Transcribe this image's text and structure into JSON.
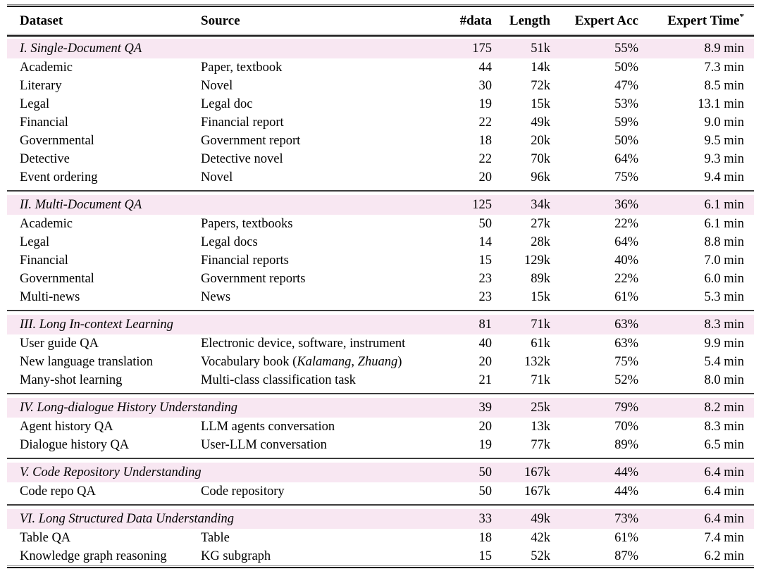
{
  "table": {
    "colors": {
      "section_row_bg": "#f8e7f2",
      "rule_color": "#141414"
    },
    "columns": [
      {
        "label": "Dataset",
        "align": "left"
      },
      {
        "label": "Source",
        "align": "left"
      },
      {
        "label": "#data",
        "align": "right"
      },
      {
        "label": "Length",
        "align": "right"
      },
      {
        "label": "Expert Acc",
        "align": "right"
      },
      {
        "label": "Expert Time",
        "superscript": "*",
        "align": "right"
      }
    ],
    "sections": [
      {
        "label": "I. Single-Document QA",
        "stats": {
          "data": "175",
          "length": "51k",
          "acc": "55%",
          "time": "8.9 min"
        },
        "rows": [
          {
            "dataset": "Academic",
            "source": "Paper, textbook",
            "data": "44",
            "length": "14k",
            "acc": "50%",
            "time": "7.3 min"
          },
          {
            "dataset": "Literary",
            "source": "Novel",
            "data": "30",
            "length": "72k",
            "acc": "47%",
            "time": "8.5 min"
          },
          {
            "dataset": "Legal",
            "source": "Legal doc",
            "data": "19",
            "length": "15k",
            "acc": "53%",
            "time": "13.1 min"
          },
          {
            "dataset": "Financial",
            "source": "Financial report",
            "data": "22",
            "length": "49k",
            "acc": "59%",
            "time": "9.0 min"
          },
          {
            "dataset": "Governmental",
            "source": "Government report",
            "data": "18",
            "length": "20k",
            "acc": "50%",
            "time": "9.5 min"
          },
          {
            "dataset": "Detective",
            "source": "Detective novel",
            "data": "22",
            "length": "70k",
            "acc": "64%",
            "time": "9.3 min"
          },
          {
            "dataset": "Event ordering",
            "source": "Novel",
            "data": "20",
            "length": "96k",
            "acc": "75%",
            "time": "9.4 min"
          }
        ]
      },
      {
        "label": "II. Multi-Document QA",
        "stats": {
          "data": "125",
          "length": "34k",
          "acc": "36%",
          "time": "6.1 min"
        },
        "rows": [
          {
            "dataset": "Academic",
            "source": "Papers, textbooks",
            "data": "50",
            "length": "27k",
            "acc": "22%",
            "time": "6.1 min"
          },
          {
            "dataset": "Legal",
            "source": "Legal docs",
            "data": "14",
            "length": "28k",
            "acc": "64%",
            "time": "8.8 min"
          },
          {
            "dataset": "Financial",
            "source": "Financial reports",
            "data": "15",
            "length": "129k",
            "acc": "40%",
            "time": "7.0 min"
          },
          {
            "dataset": "Governmental",
            "source": "Government reports",
            "data": "23",
            "length": "89k",
            "acc": "22%",
            "time": "6.0 min"
          },
          {
            "dataset": "Multi-news",
            "source": "News",
            "data": "23",
            "length": "15k",
            "acc": "61%",
            "time": "5.3 min"
          }
        ]
      },
      {
        "label": "III. Long In-context Learning",
        "stats": {
          "data": "81",
          "length": "71k",
          "acc": "63%",
          "time": "8.3 min"
        },
        "rows": [
          {
            "dataset": "User guide QA",
            "source": "Electronic device, software, instrument",
            "data": "40",
            "length": "61k",
            "acc": "63%",
            "time": "9.9 min"
          },
          {
            "dataset": "New language translation",
            "source": "Vocabulary book (Kalamang, Zhuang)",
            "italics": [
              "Kalamang",
              "Zhuang"
            ],
            "data": "20",
            "length": "132k",
            "acc": "75%",
            "time": "5.4 min"
          },
          {
            "dataset": "Many-shot learning",
            "source": "Multi-class classification task",
            "data": "21",
            "length": "71k",
            "acc": "52%",
            "time": "8.0 min"
          }
        ]
      },
      {
        "label": "IV. Long-dialogue History Understanding",
        "stats": {
          "data": "39",
          "length": "25k",
          "acc": "79%",
          "time": "8.2 min"
        },
        "rows": [
          {
            "dataset": "Agent history QA",
            "source": "LLM agents conversation",
            "data": "20",
            "length": "13k",
            "acc": "70%",
            "time": "8.3 min"
          },
          {
            "dataset": "Dialogue history QA",
            "source": "User-LLM conversation",
            "data": "19",
            "length": "77k",
            "acc": "89%",
            "time": "6.5 min"
          }
        ]
      },
      {
        "label": "V. Code Repository Understanding",
        "stats": {
          "data": "50",
          "length": "167k",
          "acc": "44%",
          "time": "6.4 min"
        },
        "rows": [
          {
            "dataset": "Code repo QA",
            "source": "Code repository",
            "data": "50",
            "length": "167k",
            "acc": "44%",
            "time": "6.4 min"
          }
        ]
      },
      {
        "label": "VI. Long Structured Data Understanding",
        "stats": {
          "data": "33",
          "length": "49k",
          "acc": "73%",
          "time": "6.4 min"
        },
        "rows": [
          {
            "dataset": "Table QA",
            "source": "Table",
            "data": "18",
            "length": "42k",
            "acc": "61%",
            "time": "7.4 min"
          },
          {
            "dataset": "Knowledge graph reasoning",
            "source": "KG subgraph",
            "data": "15",
            "length": "52k",
            "acc": "87%",
            "time": "6.2 min"
          }
        ]
      }
    ]
  }
}
